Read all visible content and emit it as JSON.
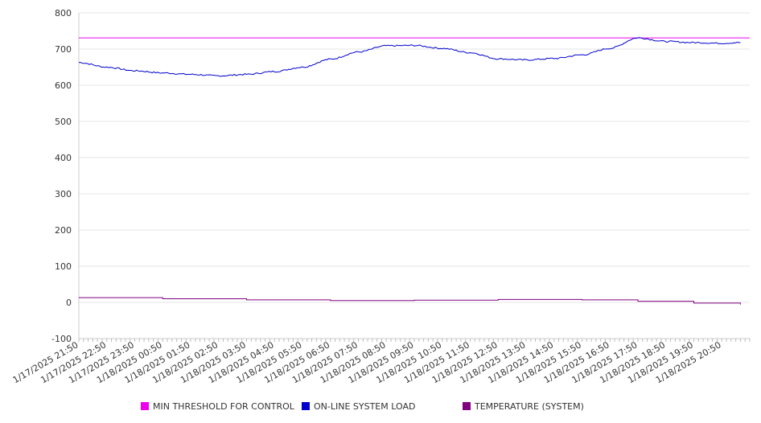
{
  "chart_data": {
    "type": "line",
    "title": "",
    "xlabel": "",
    "ylabel": "",
    "ylim": [
      -100,
      800
    ],
    "yticks": [
      -100,
      0,
      100,
      200,
      300,
      400,
      500,
      600,
      700,
      800
    ],
    "grid": true,
    "legend_position": "bottom",
    "xticks": [
      "1/17/2025 21:50",
      "1/17/2025 22:50",
      "1/17/2025 23:50",
      "1/18/2025 00:50",
      "1/18/2025 01:50",
      "1/18/2025 02:50",
      "1/18/2025 03:50",
      "1/18/2025 04:50",
      "1/18/2025 05:50",
      "1/18/2025 06:50",
      "1/18/2025 07:50",
      "1/18/2025 08:50",
      "1/18/2025 09:50",
      "1/18/2025 10:50",
      "1/18/2025 11:50",
      "1/18/2025 12:50",
      "1/18/2025 13:50",
      "1/18/2025 14:50",
      "1/18/2025 15:50",
      "1/18/2025 16:50",
      "1/18/2025 17:50",
      "1/18/2025 18:50",
      "1/18/2025 19:50",
      "1/18/2025 20:50"
    ],
    "series": [
      {
        "name": "MIN THRESHOLD FOR CONTROL",
        "color": "#ee00ee",
        "x": [
          "1/17/2025 21:50",
          "1/18/2025 21:50"
        ],
        "values": [
          731,
          731
        ]
      },
      {
        "name": "ON-LINE SYSTEM LOAD",
        "color": "#0000cc",
        "x": [
          "1/17/2025 21:50",
          "1/17/2025 22:50",
          "1/17/2025 23:50",
          "1/18/2025 00:50",
          "1/18/2025 01:50",
          "1/18/2025 02:50",
          "1/18/2025 03:50",
          "1/18/2025 04:50",
          "1/18/2025 05:50",
          "1/18/2025 06:50",
          "1/18/2025 07:50",
          "1/18/2025 08:50",
          "1/18/2025 09:50",
          "1/18/2025 10:50",
          "1/18/2025 11:50",
          "1/18/2025 12:50",
          "1/18/2025 13:50",
          "1/18/2025 14:50",
          "1/18/2025 15:50",
          "1/18/2025 16:50",
          "1/18/2025 17:50",
          "1/18/2025 18:50",
          "1/18/2025 19:50",
          "1/18/2025 20:50",
          "1/18/2025 21:30"
        ],
        "values": [
          663,
          650,
          640,
          634,
          630,
          626,
          630,
          638,
          650,
          672,
          692,
          709,
          710,
          702,
          690,
          673,
          670,
          674,
          684,
          702,
          731,
          721,
          718,
          716,
          718
        ]
      },
      {
        "name": "TEMPERATURE (SYSTEM)",
        "color": "#800080",
        "x": [
          "1/17/2025 21:50",
          "1/18/2025 00:50",
          "1/18/2025 03:50",
          "1/18/2025 06:50",
          "1/18/2025 09:50",
          "1/18/2025 12:50",
          "1/18/2025 15:50",
          "1/18/2025 17:50",
          "1/18/2025 19:50",
          "1/18/2025 21:30"
        ],
        "values": [
          13,
          10,
          7,
          5,
          6,
          8,
          7,
          3,
          -2,
          -6
        ]
      }
    ]
  }
}
